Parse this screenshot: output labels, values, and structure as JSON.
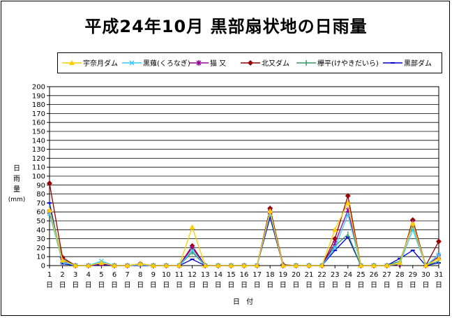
{
  "chart_data": {
    "type": "line",
    "title": "平成24年10月 黒部扇状地の日雨量",
    "xlabel": "日 付",
    "ylabel": "日雨量(mm)",
    "ylim": [
      0,
      200
    ],
    "ytick_step": 10,
    "grid": true,
    "legend_position": "top",
    "x_suffix": "日",
    "x": [
      1,
      2,
      3,
      4,
      5,
      6,
      7,
      8,
      9,
      10,
      11,
      12,
      13,
      14,
      15,
      16,
      17,
      18,
      19,
      20,
      21,
      22,
      23,
      24,
      25,
      26,
      27,
      28,
      29,
      30,
      31
    ],
    "series": [
      {
        "name": "宇奈月ダム",
        "color": "#FFCC00",
        "marker": "triangle",
        "values": [
          62,
          6,
          0,
          0,
          3,
          0,
          0,
          2,
          0,
          0,
          0,
          43,
          0,
          0,
          0,
          0,
          0,
          61,
          0,
          0,
          0,
          0,
          40,
          70,
          0,
          0,
          0,
          3,
          47,
          0,
          8
        ]
      },
      {
        "name": "黒薙(くろなぎ)",
        "color": "#33CCFF",
        "marker": "x",
        "values": [
          58,
          4,
          0,
          0,
          5,
          0,
          0,
          1,
          0,
          0,
          0,
          17,
          0,
          0,
          0,
          0,
          0,
          58,
          0,
          0,
          0,
          0,
          20,
          57,
          0,
          0,
          0,
          2,
          40,
          0,
          12
        ]
      },
      {
        "name": "猫 又",
        "color": "#990099",
        "marker": "star",
        "values": [
          60,
          5,
          0,
          0,
          2,
          0,
          0,
          1,
          0,
          0,
          0,
          20,
          0,
          0,
          0,
          0,
          0,
          60,
          0,
          0,
          0,
          0,
          25,
          62,
          0,
          0,
          0,
          2,
          48,
          0,
          10
        ]
      },
      {
        "name": "北又ダム",
        "color": "#990000",
        "marker": "diamond",
        "values": [
          92,
          9,
          0,
          0,
          2,
          0,
          0,
          2,
          0,
          0,
          0,
          22,
          0,
          0,
          0,
          0,
          0,
          64,
          1,
          0,
          0,
          0,
          30,
          78,
          0,
          0,
          0,
          1,
          51,
          0,
          27
        ]
      },
      {
        "name": "欅平(けやきだいら)",
        "color": "#339966",
        "marker": "plus",
        "values": [
          65,
          7,
          0,
          0,
          3,
          0,
          0,
          1,
          0,
          0,
          0,
          15,
          0,
          0,
          0,
          0,
          0,
          62,
          0,
          0,
          0,
          0,
          22,
          35,
          0,
          0,
          0,
          5,
          45,
          0,
          5
        ]
      },
      {
        "name": "黒部ダム",
        "color": "#0000CC",
        "marker": "dash",
        "values": [
          70,
          2,
          0,
          0,
          1,
          0,
          0,
          0,
          0,
          0,
          0,
          7,
          0,
          0,
          0,
          0,
          0,
          54,
          0,
          0,
          0,
          0,
          17,
          32,
          0,
          0,
          0,
          8,
          17,
          0,
          3
        ]
      }
    ]
  }
}
